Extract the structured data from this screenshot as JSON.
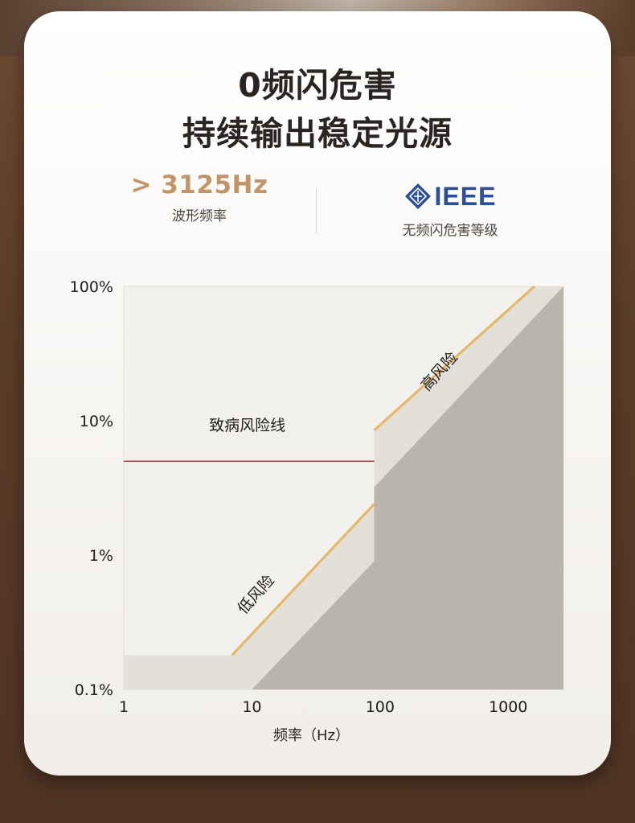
{
  "headline": {
    "line1": "0频闪危害",
    "line2": "持续输出稳定光源"
  },
  "stats": {
    "frequency": {
      "value": "> 3125Hz",
      "caption": "波形频率"
    },
    "ieee": {
      "logo_text": "IEEE",
      "caption": "无频闪危害等级",
      "logo_icon": "ieee-diamond-icon",
      "logo_color": "#2c4f9a"
    }
  },
  "chart_data": {
    "type": "area",
    "xscale": "log",
    "yscale": "log",
    "xlim": [
      1,
      2700
    ],
    "ylim": [
      0.1,
      100
    ],
    "xlabel": "频率（Hz）",
    "ylabel": "",
    "xticks": [
      {
        "value": 1,
        "label": "1"
      },
      {
        "value": 10,
        "label": "10"
      },
      {
        "value": 100,
        "label": "100"
      },
      {
        "value": 1000,
        "label": "1000"
      }
    ],
    "yticks": [
      {
        "value": 100,
        "label": "100%"
      },
      {
        "value": 10,
        "label": "10%"
      },
      {
        "value": 1,
        "label": "1%"
      },
      {
        "value": 0.1,
        "label": "0.1%"
      }
    ],
    "regions": [
      {
        "name": "低风险",
        "color": "#e3dfd9",
        "x": [
          1,
          7,
          90,
          90,
          1600,
          2700,
          2700,
          10,
          1
        ],
        "y": [
          0.18,
          0.18,
          2.4,
          8.5,
          100,
          100,
          0.1,
          0.1,
          0.1
        ]
      },
      {
        "name": "",
        "color": "#bab5aa",
        "x": [
          10,
          90,
          90,
          2700,
          2700
        ],
        "y": [
          0.1,
          0.9,
          3.2,
          100,
          0.1
        ]
      }
    ],
    "series": [
      {
        "name": "低风险",
        "color": "#e5b86a",
        "x": [
          7,
          90
        ],
        "y": [
          0.18,
          2.4
        ]
      },
      {
        "name": "高风险",
        "color": "#e5b86a",
        "x": [
          90,
          1600
        ],
        "y": [
          8.5,
          100
        ]
      },
      {
        "name": "致病风险线",
        "color": "#c0392b",
        "x": [
          1,
          90
        ],
        "y": [
          5,
          5
        ]
      }
    ],
    "annotations": [
      {
        "text": "致病风险线",
        "x": 9.2,
        "y": 8.5,
        "angle": 0
      },
      {
        "text": "低风险",
        "x": 11.5,
        "y": 0.48,
        "angle": -48
      },
      {
        "text": "高风险",
        "x": 310,
        "y": 22,
        "angle": -48
      }
    ],
    "plot_bg": "#f3f1ee"
  }
}
